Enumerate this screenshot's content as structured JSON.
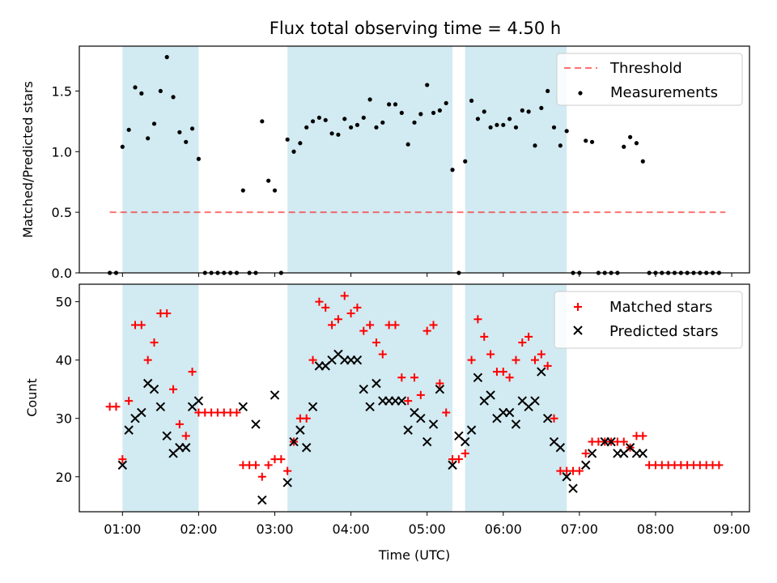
{
  "title": "Flux total observing time = 4.50 h",
  "chart_data": [
    {
      "type": "scatter",
      "panel": "top",
      "ylabel": "Matched/Predicted stars",
      "ylim": [
        0,
        1.87
      ],
      "yticks": [
        "0.0",
        "0.5",
        "1.0",
        "1.5"
      ],
      "ytick_values": [
        0,
        0.5,
        1.0,
        1.5
      ],
      "xlim": [
        "00:26",
        "09:14"
      ],
      "x_unit": "time of day (UTC, hh:mm)",
      "shaded_intervals": [
        [
          "01:00",
          "02:00"
        ],
        [
          "03:10",
          "05:20"
        ],
        [
          "05:30",
          "06:50"
        ]
      ],
      "shade_color": "#add8e6",
      "threshold": {
        "name": "Threshold",
        "value": 0.5,
        "x_from": "00:50",
        "x_to": "08:55",
        "color": "#ff0000",
        "style": "dashed"
      },
      "legend": {
        "position": "upper right",
        "entries": [
          "Threshold",
          "Measurements"
        ]
      },
      "series": [
        {
          "name": "Measurements",
          "color": "#000000",
          "marker": "dot",
          "x": [
            "00:50",
            "00:55",
            "01:00",
            "01:05",
            "01:10",
            "01:15",
            "01:20",
            "01:25",
            "01:30",
            "01:35",
            "01:40",
            "01:45",
            "01:50",
            "01:55",
            "02:00",
            "02:05",
            "02:10",
            "02:15",
            "02:20",
            "02:25",
            "02:30",
            "02:35",
            "02:40",
            "02:45",
            "02:50",
            "02:55",
            "03:00",
            "03:05",
            "03:10",
            "03:15",
            "03:20",
            "03:25",
            "03:30",
            "03:35",
            "03:40",
            "03:45",
            "03:50",
            "03:55",
            "04:00",
            "04:05",
            "04:10",
            "04:15",
            "04:20",
            "04:25",
            "04:30",
            "04:35",
            "04:40",
            "04:45",
            "04:50",
            "04:55",
            "05:00",
            "05:05",
            "05:10",
            "05:15",
            "05:20",
            "05:25",
            "05:30",
            "05:35",
            "05:40",
            "05:45",
            "05:50",
            "05:55",
            "06:00",
            "06:05",
            "06:10",
            "06:15",
            "06:20",
            "06:25",
            "06:30",
            "06:35",
            "06:40",
            "06:45",
            "06:50",
            "06:55",
            "07:00",
            "07:05",
            "07:10",
            "07:15",
            "07:20",
            "07:25",
            "07:30",
            "07:35",
            "07:40",
            "07:45",
            "07:50",
            "07:55",
            "08:00",
            "08:05",
            "08:10",
            "08:15",
            "08:20",
            "08:25",
            "08:30",
            "08:35",
            "08:40",
            "08:45",
            "08:50"
          ],
          "y": [
            0,
            0,
            1.04,
            1.18,
            1.53,
            1.48,
            1.11,
            1.23,
            1.5,
            1.78,
            1.45,
            1.16,
            1.08,
            1.19,
            0.94,
            0,
            0,
            0,
            0,
            0,
            0,
            0.68,
            0,
            0,
            1.25,
            0.76,
            0.68,
            0,
            1.1,
            1.0,
            1.07,
            1.2,
            1.25,
            1.28,
            1.26,
            1.15,
            1.14,
            1.27,
            1.2,
            1.22,
            1.28,
            1.43,
            1.2,
            1.24,
            1.39,
            1.39,
            1.32,
            1.06,
            1.24,
            1.31,
            1.55,
            1.32,
            1.34,
            1.4,
            0.85,
            0,
            0.92,
            1.42,
            1.27,
            1.33,
            1.2,
            1.22,
            1.22,
            1.27,
            1.2,
            1.34,
            1.33,
            1.05,
            1.36,
            1.5,
            1.2,
            1.05,
            1.17,
            0,
            0,
            1.09,
            1.08,
            0,
            0,
            0,
            0,
            1.04,
            1.12,
            1.07,
            0.92,
            0,
            0,
            0,
            0,
            0,
            0,
            0,
            0,
            0,
            0,
            0,
            0
          ]
        }
      ]
    },
    {
      "type": "scatter",
      "panel": "bottom",
      "xlabel": "Time (UTC)",
      "ylabel": "Count",
      "ylim": [
        14,
        53
      ],
      "yticks": [
        "20",
        "30",
        "40",
        "50"
      ],
      "ytick_values": [
        20,
        30,
        40,
        50
      ],
      "xlim": [
        "00:26",
        "09:14"
      ],
      "x_unit": "time of day (UTC, hh:mm)",
      "xticks": [
        "01:00",
        "02:00",
        "03:00",
        "04:00",
        "05:00",
        "06:00",
        "07:00",
        "08:00",
        "09:00"
      ],
      "shaded_intervals": [
        [
          "01:00",
          "02:00"
        ],
        [
          "03:10",
          "05:20"
        ],
        [
          "05:30",
          "06:50"
        ]
      ],
      "shade_color": "#add8e6",
      "legend": {
        "position": "upper right",
        "entries": [
          "Matched stars",
          "Predicted stars"
        ]
      },
      "series": [
        {
          "name": "Matched stars",
          "color": "#ff0000",
          "marker": "plus",
          "x": [
            "00:50",
            "00:55",
            "01:00",
            "01:05",
            "01:10",
            "01:15",
            "01:20",
            "01:25",
            "01:30",
            "01:35",
            "01:40",
            "01:45",
            "01:50",
            "01:55",
            "02:00",
            "02:05",
            "02:10",
            "02:15",
            "02:20",
            "02:25",
            "02:30",
            "02:35",
            "02:40",
            "02:45",
            "02:50",
            "02:55",
            "03:00",
            "03:05",
            "03:10",
            "03:15",
            "03:20",
            "03:25",
            "03:30",
            "03:35",
            "03:40",
            "03:45",
            "03:50",
            "03:55",
            "04:00",
            "04:05",
            "04:10",
            "04:15",
            "04:20",
            "04:25",
            "04:30",
            "04:35",
            "04:40",
            "04:45",
            "04:50",
            "04:55",
            "05:00",
            "05:05",
            "05:10",
            "05:15",
            "05:20",
            "05:25",
            "05:30",
            "05:35",
            "05:40",
            "05:45",
            "05:50",
            "05:55",
            "06:00",
            "06:05",
            "06:10",
            "06:15",
            "06:20",
            "06:25",
            "06:30",
            "06:35",
            "06:40",
            "06:45",
            "06:50",
            "06:55",
            "07:00",
            "07:05",
            "07:10",
            "07:15",
            "07:20",
            "07:25",
            "07:30",
            "07:35",
            "07:40",
            "07:45",
            "07:50",
            "07:55",
            "08:00",
            "08:05",
            "08:10",
            "08:15",
            "08:20",
            "08:25",
            "08:30",
            "08:35",
            "08:40",
            "08:45",
            "08:50"
          ],
          "y": [
            32,
            32,
            23,
            33,
            46,
            46,
            40,
            43,
            48,
            48,
            35,
            29,
            27,
            38,
            31,
            31,
            31,
            31,
            31,
            31,
            31,
            22,
            22,
            22,
            20,
            22,
            23,
            23,
            21,
            26,
            30,
            30,
            40,
            50,
            49,
            46,
            47,
            51,
            48,
            49,
            45,
            46,
            43,
            41,
            46,
            46,
            37,
            33,
            37,
            34,
            45,
            46,
            36,
            31,
            23,
            23,
            24,
            40,
            47,
            44,
            41,
            38,
            38,
            37,
            40,
            43,
            44,
            40,
            41,
            39,
            30,
            21,
            21,
            21,
            21,
            24,
            26,
            26,
            26,
            26,
            26,
            26,
            25,
            27,
            27,
            22,
            22,
            22,
            22,
            22,
            22,
            22,
            22,
            22,
            22,
            22,
            22
          ]
        },
        {
          "name": "Predicted stars",
          "color": "#000000",
          "marker": "x",
          "x": [
            "01:00",
            "01:05",
            "01:10",
            "01:15",
            "01:20",
            "01:25",
            "01:30",
            "01:35",
            "01:40",
            "01:45",
            "01:50",
            "01:55",
            "02:00",
            "02:35",
            "02:45",
            "02:50",
            "03:00",
            "03:10",
            "03:15",
            "03:20",
            "03:25",
            "03:30",
            "03:35",
            "03:40",
            "03:45",
            "03:50",
            "03:55",
            "04:00",
            "04:05",
            "04:10",
            "04:15",
            "04:20",
            "04:25",
            "04:30",
            "04:35",
            "04:40",
            "04:45",
            "04:50",
            "04:55",
            "05:00",
            "05:05",
            "05:10",
            "05:20",
            "05:25",
            "05:30",
            "05:35",
            "05:40",
            "05:45",
            "05:50",
            "05:55",
            "06:00",
            "06:05",
            "06:10",
            "06:15",
            "06:20",
            "06:25",
            "06:30",
            "06:35",
            "06:40",
            "06:45",
            "06:50",
            "06:55",
            "07:05",
            "07:10",
            "07:20",
            "07:25",
            "07:30",
            "07:35",
            "07:40",
            "07:45",
            "07:50"
          ],
          "y": [
            22,
            28,
            30,
            31,
            36,
            35,
            32,
            27,
            24,
            25,
            25,
            32,
            33,
            32,
            29,
            16,
            34,
            19,
            26,
            28,
            25,
            32,
            39,
            39,
            40,
            41,
            40,
            40,
            40,
            35,
            32,
            36,
            33,
            33,
            33,
            33,
            28,
            31,
            30,
            26,
            29,
            35,
            22,
            27,
            26,
            28,
            37,
            33,
            34,
            30,
            31,
            31,
            29,
            33,
            32,
            33,
            38,
            30,
            26,
            25,
            20,
            18,
            22,
            24,
            26,
            26,
            24,
            24,
            25,
            24,
            24
          ]
        }
      ]
    }
  ]
}
